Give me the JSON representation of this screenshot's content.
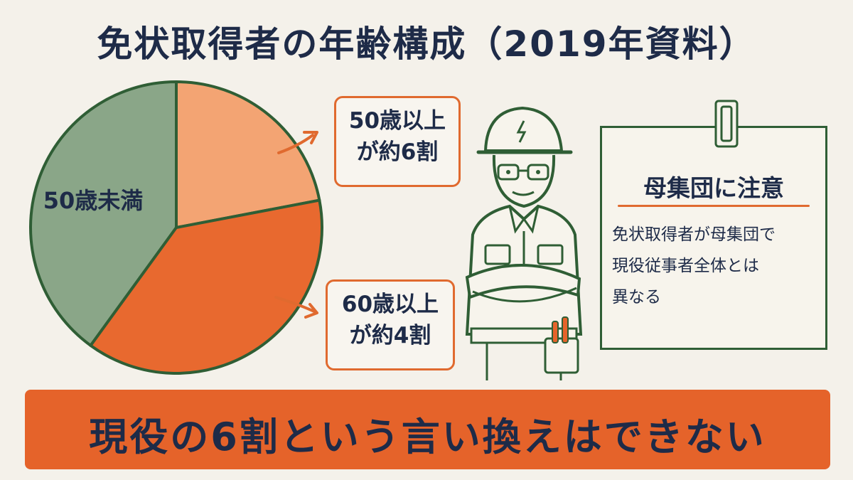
{
  "title": "免状取得者の年齢構成（2019年資料）",
  "chart_data": {
    "type": "pie",
    "title": "免状取得者の年齢構成（2019年資料）",
    "slices": [
      {
        "label": "50歳未満",
        "value": 40,
        "color": "#8aa688"
      },
      {
        "label": "",
        "value": 22,
        "color": "#f3a473"
      },
      {
        "label": "",
        "value": 38,
        "color": "#e8692f"
      }
    ]
  },
  "callouts": {
    "over50": {
      "line1": "50歳以上",
      "line2": "が約6割"
    },
    "over60": {
      "line1": "60歳以上",
      "line2": "が約4割"
    }
  },
  "note": {
    "title": "母集団に注意",
    "body": "免状取得者が母集団で\n現役従事者全体とは\n異なる"
  },
  "banner": "現役の6割という言い換えはできない",
  "colors": {
    "accent": "#e5632a",
    "green": "#2f5e35",
    "navy": "#1e2b48",
    "background": "#f4f1ea"
  },
  "icons": {
    "worker": "construction-worker-illustration",
    "clip": "binder-clip-icon"
  }
}
